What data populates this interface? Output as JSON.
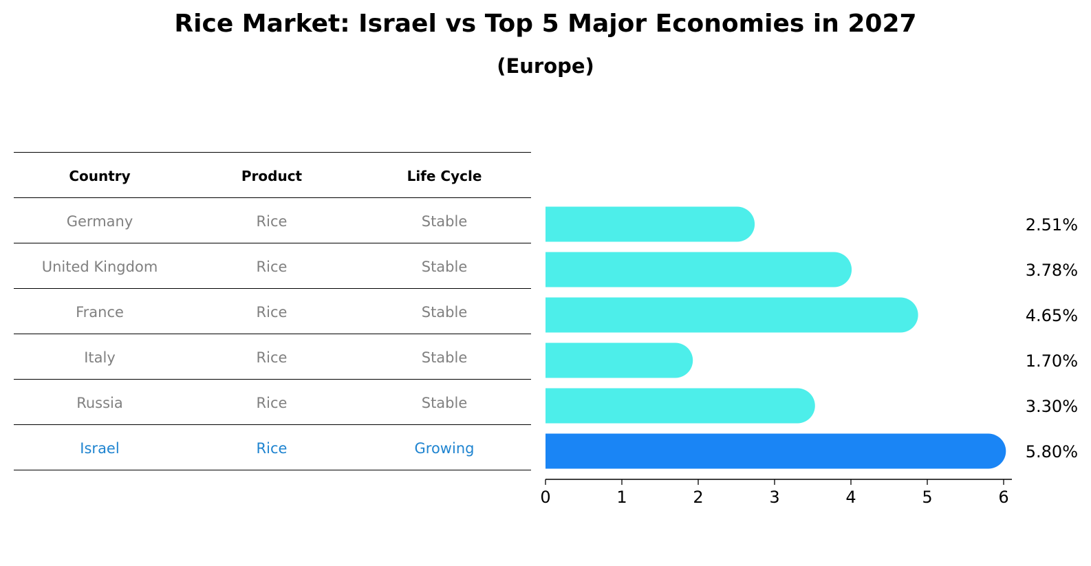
{
  "title": "Rice Market: Israel vs Top 5 Major Economies in 2027",
  "subtitle": "(Europe)",
  "table": {
    "headers": [
      "Country",
      "Product",
      "Life Cycle"
    ],
    "rows": [
      {
        "country": "Germany",
        "product": "Rice",
        "life_cycle": "Stable"
      },
      {
        "country": "United Kingdom",
        "product": "Rice",
        "life_cycle": "Stable"
      },
      {
        "country": "France",
        "product": "Rice",
        "life_cycle": "Stable"
      },
      {
        "country": "Italy",
        "product": "Rice",
        "life_cycle": "Stable"
      },
      {
        "country": "Russia",
        "product": "Rice",
        "life_cycle": "Stable"
      },
      {
        "country": "Israel",
        "product": "Rice",
        "life_cycle": "Growing"
      }
    ]
  },
  "colors": {
    "bar": "#4ded ea",
    "highlight_bar": "#1a85f5",
    "row_text": "#808080",
    "highlight_text": "#1f84d0"
  },
  "chart_data": {
    "type": "bar",
    "orientation": "horizontal",
    "categories": [
      "Germany",
      "United Kingdom",
      "France",
      "Italy",
      "Russia",
      "Israel"
    ],
    "values": [
      2.51,
      3.78,
      4.65,
      1.7,
      3.3,
      5.8
    ],
    "value_labels": [
      "2.51%",
      "3.78%",
      "4.65%",
      "1.70%",
      "3.30%",
      "5.80%"
    ],
    "highlight_index": 5,
    "xlim": [
      0,
      6
    ],
    "xticks": [
      "0",
      "1",
      "2",
      "3",
      "4",
      "5",
      "6"
    ],
    "xlabel": "",
    "ylabel": "",
    "grid": false
  }
}
